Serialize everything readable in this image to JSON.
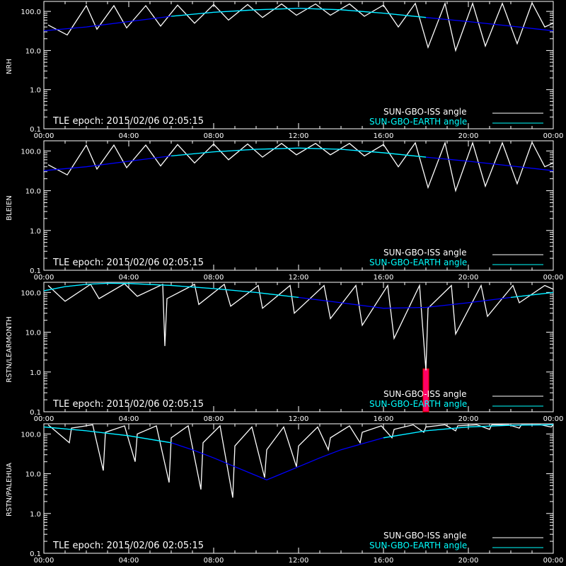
{
  "x_tick_labels": [
    "00:00",
    "04:00",
    "08:00",
    "12:00",
    "16:00",
    "20:00",
    "00:00"
  ],
  "y_tick_labels": [
    "100.0",
    "10.0",
    "1.0",
    "0.1"
  ],
  "epoch_text": "TLE epoch: 2015/02/06 02:05:15",
  "legend": [
    {
      "label": "SUN-GBO-ISS angle",
      "color": "#ffffff"
    },
    {
      "label": "SUN-GBO-EARTH angle",
      "color": "#00ffff"
    }
  ],
  "colors": {
    "background": "#000000",
    "axes": "#ffffff",
    "iss_curve": "#ffffff",
    "earth_curve_day": "#00ffff",
    "earth_curve_night": "#0000ff",
    "highlight_bar": "#ff0066",
    "highlight_bar_edge": "#ff0000"
  },
  "chart_data": [
    {
      "type": "line",
      "ylabel": "NRH",
      "xlim_hours": [
        0,
        24
      ],
      "ylim": [
        0.1,
        180
      ],
      "yscale": "log",
      "series": [
        {
          "name": "SUN-GBO-ISS angle",
          "x": [
            0.2,
            1.1,
            2.0,
            2.5,
            3.3,
            3.9,
            4.8,
            5.5,
            6.3,
            7.1,
            8.0,
            8.7,
            9.6,
            10.3,
            11.2,
            11.9,
            12.8,
            13.5,
            14.4,
            15.1,
            16.0,
            16.7,
            17.5,
            18.1,
            18.9,
            19.4,
            20.2,
            20.8,
            21.6,
            22.3,
            23.0,
            23.6,
            24.0
          ],
          "y": [
            45,
            25,
            140,
            35,
            140,
            38,
            140,
            42,
            145,
            50,
            150,
            60,
            150,
            70,
            155,
            80,
            155,
            80,
            155,
            75,
            145,
            40,
            160,
            12,
            160,
            10,
            160,
            13,
            160,
            15,
            165,
            40,
            50
          ]
        },
        {
          "name": "SUN-GBO-EARTH angle",
          "x": [
            0,
            2,
            4,
            6,
            8,
            10,
            12,
            14,
            16,
            18,
            20,
            22,
            24
          ],
          "y": [
            32,
            40,
            55,
            75,
            95,
            110,
            120,
            110,
            90,
            70,
            55,
            42,
            32
          ]
        }
      ]
    },
    {
      "type": "line",
      "ylabel": "BLEIEN",
      "xlim_hours": [
        0,
        24
      ],
      "ylim": [
        0.1,
        180
      ],
      "yscale": "log",
      "series": [
        {
          "name": "SUN-GBO-ISS angle",
          "x": [
            0.2,
            1.1,
            2.0,
            2.5,
            3.3,
            3.9,
            4.8,
            5.5,
            6.3,
            7.1,
            8.0,
            8.7,
            9.6,
            10.3,
            11.2,
            11.9,
            12.8,
            13.5,
            14.4,
            15.1,
            16.0,
            16.7,
            17.5,
            18.1,
            18.9,
            19.4,
            20.2,
            20.8,
            21.6,
            22.3,
            23.0,
            23.6,
            24.0
          ],
          "y": [
            45,
            25,
            140,
            35,
            140,
            38,
            140,
            42,
            145,
            50,
            150,
            60,
            150,
            70,
            155,
            80,
            155,
            80,
            155,
            75,
            145,
            40,
            160,
            12,
            160,
            10,
            160,
            13,
            160,
            15,
            165,
            40,
            50
          ]
        },
        {
          "name": "SUN-GBO-EARTH angle",
          "x": [
            0,
            2,
            4,
            6,
            8,
            10,
            12,
            14,
            16,
            18,
            20,
            22,
            24
          ],
          "y": [
            32,
            40,
            55,
            75,
            95,
            110,
            118,
            110,
            90,
            70,
            55,
            42,
            32
          ]
        }
      ]
    },
    {
      "type": "line",
      "ylabel": "RSTN/LEARMONTH",
      "xlim_hours": [
        0,
        24
      ],
      "ylim": [
        0.1,
        180
      ],
      "yscale": "log",
      "highlight_bar": {
        "x_hours": 18.0,
        "y_range": [
          0.1,
          1.2
        ]
      },
      "series": [
        {
          "name": "SUN-GBO-ISS angle",
          "x": [
            0.2,
            1.0,
            2.2,
            2.6,
            3.8,
            4.4,
            5.6,
            5.7,
            5.8,
            7.1,
            7.3,
            8.5,
            8.8,
            10.1,
            10.3,
            11.6,
            11.8,
            13.2,
            13.5,
            14.7,
            15.0,
            16.2,
            16.5,
            17.7,
            18.0,
            18.1,
            19.2,
            19.4,
            20.6,
            20.9,
            22.1,
            22.4,
            23.6,
            24.0
          ],
          "y": [
            150,
            60,
            160,
            70,
            165,
            80,
            160,
            4.5,
            70,
            160,
            50,
            160,
            45,
            150,
            40,
            150,
            30,
            150,
            22,
            150,
            15,
            150,
            7,
            150,
            1.1,
            40,
            150,
            9,
            150,
            25,
            150,
            55,
            150,
            120
          ]
        },
        {
          "name": "SUN-GBO-EARTH angle",
          "x": [
            0,
            1,
            2,
            3,
            4,
            6,
            8,
            10,
            12,
            14,
            16,
            18,
            20,
            22,
            24
          ],
          "y": [
            110,
            140,
            160,
            170,
            168,
            150,
            125,
            100,
            75,
            55,
            40,
            42,
            55,
            75,
            100
          ]
        }
      ]
    },
    {
      "type": "line",
      "ylabel": "RSTN/PALEHUA",
      "xlim_hours": [
        0,
        24
      ],
      "ylim": [
        0.1,
        180
      ],
      "yscale": "log",
      "series": [
        {
          "name": "SUN-GBO-ISS angle",
          "x": [
            0.2,
            1.2,
            1.3,
            2.3,
            2.8,
            2.9,
            3.8,
            4.3,
            4.4,
            5.3,
            5.9,
            6.0,
            6.8,
            7.4,
            7.5,
            8.3,
            8.9,
            9.0,
            9.8,
            10.4,
            10.5,
            11.3,
            11.9,
            12.0,
            12.9,
            13.4,
            13.5,
            14.4,
            14.9,
            15.0,
            15.9,
            16.4,
            16.5,
            17.4,
            17.9,
            18.0,
            18.9,
            19.4,
            19.5,
            20.4,
            21.0,
            21.1,
            21.9,
            22.4,
            22.5,
            23.4,
            23.9,
            24.0
          ],
          "y": [
            170,
            60,
            140,
            170,
            12,
            110,
            160,
            20,
            100,
            160,
            6,
            80,
            160,
            4,
            60,
            160,
            2.5,
            50,
            150,
            8,
            40,
            150,
            15,
            50,
            150,
            40,
            80,
            160,
            60,
            110,
            160,
            80,
            130,
            170,
            110,
            150,
            170,
            120,
            160,
            170,
            130,
            170,
            170,
            140,
            170,
            170,
            150,
            170
          ]
        },
        {
          "name": "SUN-GBO-EARTH angle",
          "x": [
            0,
            2,
            4,
            6,
            7,
            8,
            9,
            10,
            10.5,
            11,
            12,
            13,
            14,
            16,
            18,
            20,
            22,
            24
          ],
          "y": [
            150,
            120,
            90,
            60,
            40,
            25,
            15,
            9,
            7,
            9,
            15,
            25,
            40,
            80,
            120,
            150,
            165,
            170
          ]
        }
      ]
    }
  ]
}
